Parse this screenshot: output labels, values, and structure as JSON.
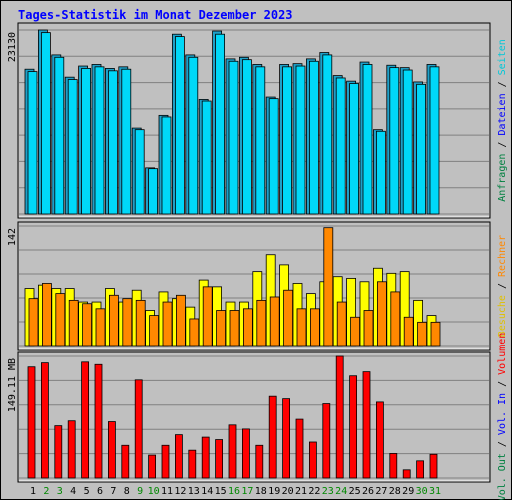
{
  "title": "Tages-Statistik im Monat Dezember 2023",
  "colors": {
    "background": "#c0c0c0",
    "title": "#0000ff",
    "grid": "#808080",
    "anfragen": "#00aaff",
    "dateien": "#00e0ff",
    "seiten": "#00c8d8",
    "besuche": "#ffff00",
    "rechner": "#ff8800",
    "volumen": "#ff0000",
    "weekend": "#008800",
    "weekday": "#000000"
  },
  "right_labels": {
    "top": [
      {
        "text": "Anfragen",
        "color": "#008040"
      },
      {
        "text": " / ",
        "color": "#000000"
      },
      {
        "text": "Dateien",
        "color": "#0000ff"
      },
      {
        "text": " / ",
        "color": "#000000"
      },
      {
        "text": "Seiten",
        "color": "#00c8d8"
      }
    ],
    "middle": [
      {
        "text": "Besuche",
        "color": "#e0c000"
      },
      {
        "text": " / ",
        "color": "#000000"
      },
      {
        "text": "Rechner",
        "color": "#ff8800"
      }
    ],
    "bottom": [
      {
        "text": "Vol. Out",
        "color": "#008040"
      },
      {
        "text": " / ",
        "color": "#000000"
      },
      {
        "text": "Vol. In",
        "color": "#0000ff"
      },
      {
        "text": " / ",
        "color": "#000000"
      },
      {
        "text": "Volumen",
        "color": "#ff0000"
      }
    ]
  },
  "chart_data": [
    {
      "type": "bar",
      "panel": "top",
      "ylabel_max": "23130",
      "ylim": [
        0,
        23130
      ],
      "categories": [
        "1",
        "2",
        "3",
        "4",
        "5",
        "6",
        "7",
        "8",
        "9",
        "10",
        "11",
        "12",
        "13",
        "14",
        "15",
        "16",
        "17",
        "18",
        "19",
        "20",
        "21",
        "22",
        "23",
        "24",
        "25",
        "26",
        "27",
        "28",
        "29",
        "30",
        "31"
      ],
      "series": [
        {
          "name": "Anfragen",
          "values": [
            18200,
            23130,
            20000,
            17200,
            18600,
            18800,
            18300,
            18500,
            10800,
            5800,
            12400,
            22600,
            20000,
            14400,
            23000,
            19500,
            19700,
            18800,
            14700,
            18800,
            18900,
            19500,
            20300,
            17400,
            16700,
            19100,
            10600,
            18700,
            18400,
            16600,
            18800
          ]
        },
        {
          "name": "Dateien",
          "values": [
            17900,
            22800,
            19700,
            16900,
            18300,
            18500,
            18000,
            18200,
            10600,
            5700,
            12200,
            22300,
            19700,
            14200,
            22600,
            19200,
            19400,
            18500,
            14500,
            18500,
            18600,
            19200,
            20000,
            17100,
            16400,
            18800,
            10400,
            18400,
            18100,
            16300,
            18500
          ]
        }
      ]
    },
    {
      "type": "bar",
      "panel": "middle",
      "ylabel_max": "142",
      "ylim": [
        0,
        142
      ],
      "categories": [
        "1",
        "2",
        "3",
        "4",
        "5",
        "6",
        "7",
        "8",
        "9",
        "10",
        "11",
        "12",
        "13",
        "14",
        "15",
        "16",
        "17",
        "18",
        "19",
        "20",
        "21",
        "22",
        "23",
        "24",
        "25",
        "26",
        "27",
        "28",
        "29",
        "30",
        "31"
      ],
      "series": [
        {
          "name": "Besuche",
          "values": [
            68,
            72,
            68,
            68,
            52,
            52,
            68,
            52,
            66,
            42,
            64,
            56,
            46,
            78,
            70,
            52,
            52,
            88,
            108,
            96,
            74,
            62,
            76,
            82,
            80,
            76,
            92,
            86,
            88,
            54,
            36
          ]
        },
        {
          "name": "Rechner",
          "values": [
            56,
            74,
            62,
            54,
            50,
            44,
            60,
            56,
            54,
            36,
            52,
            60,
            32,
            70,
            42,
            42,
            44,
            54,
            58,
            66,
            44,
            44,
            140,
            52,
            34,
            42,
            76,
            64,
            34,
            28,
            28
          ]
        }
      ]
    },
    {
      "type": "bar",
      "panel": "bottom",
      "ylabel_max": "149.11 MB",
      "ylim": [
        0,
        149.11
      ],
      "categories": [
        "1",
        "2",
        "3",
        "4",
        "5",
        "6",
        "7",
        "8",
        "9",
        "10",
        "11",
        "12",
        "13",
        "14",
        "15",
        "16",
        "17",
        "18",
        "19",
        "20",
        "21",
        "22",
        "23",
        "24",
        "25",
        "26",
        "27",
        "28",
        "29",
        "30",
        "31"
      ],
      "series": [
        {
          "name": "Volumen",
          "values": [
            136,
            141,
            64,
            70,
            142,
            139,
            69,
            40,
            120,
            28,
            40,
            53,
            34,
            50,
            47,
            65,
            60,
            40,
            100,
            97,
            72,
            44,
            91,
            149.11,
            125,
            130,
            93,
            30,
            10,
            21,
            29
          ]
        }
      ]
    }
  ],
  "x_axis": {
    "labels": [
      "1",
      "2",
      "3",
      "4",
      "5",
      "6",
      "7",
      "8",
      "9",
      "10",
      "11",
      "12",
      "13",
      "14",
      "15",
      "16",
      "17",
      "18",
      "19",
      "20",
      "21",
      "22",
      "23",
      "24",
      "25",
      "26",
      "27",
      "28",
      "29",
      "30",
      "31"
    ],
    "weekend_days": [
      2,
      3,
      9,
      10,
      16,
      17,
      23,
      24,
      30,
      31
    ]
  }
}
